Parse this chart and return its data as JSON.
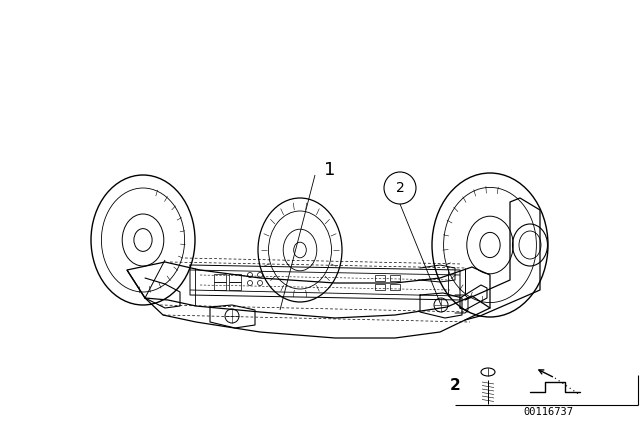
{
  "background_color": "#ffffff",
  "figure_width": 6.4,
  "figure_height": 4.48,
  "dpi": 100,
  "part_number_text": "00116737",
  "label1": "1",
  "label2": "2",
  "bottom_label2": "2",
  "line_color": "#000000",
  "lw_main": 0.9,
  "lw_thin": 0.5,
  "lw_dash": 0.5
}
